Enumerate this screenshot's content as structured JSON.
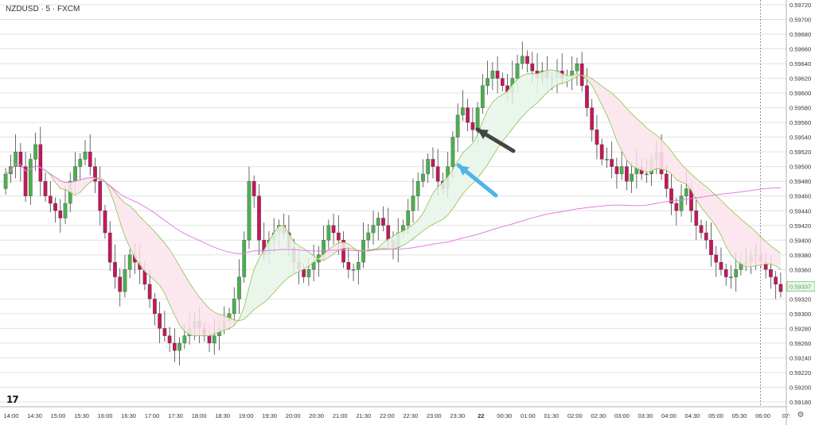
{
  "header": {
    "symbol_title": "NZDUSD · 5 · FXCM"
  },
  "branding": {
    "logo_text": "17"
  },
  "icons": {
    "settings": "settings-icon"
  },
  "colors": {
    "up": "#4caf50",
    "down": "#c2185b",
    "ribbon_up_fill": "#e8f5e9",
    "ribbon_down_fill": "#fce4ec",
    "ribbon_line": "#8bc34a",
    "ma_slow": "#e57ce8",
    "arrow_black": "#444444",
    "arrow_blue": "#4fb3e8",
    "grid": "#e0e0e0",
    "last_price_bg": "#e8f5e9"
  },
  "chart_data": {
    "type": "candlestick",
    "symbol": "NZDUSD",
    "timeframe": "5",
    "source": "FXCM",
    "ylim": [
      0.5918,
      0.5972
    ],
    "y_ticks": [
      "0.59720",
      "0.59700",
      "0.59680",
      "0.59660",
      "0.59640",
      "0.59620",
      "0.59600",
      "0.59580",
      "0.59560",
      "0.59540",
      "0.59520",
      "0.59500",
      "0.59480",
      "0.59460",
      "0.59440",
      "0.59420",
      "0.59400",
      "0.59380",
      "0.59360",
      "0.59337",
      "0.59320",
      "0.59300",
      "0.59280",
      "0.59260",
      "0.59240",
      "0.59220",
      "0.59200",
      "0.59180"
    ],
    "last_price": "0.59337",
    "x_ticks": [
      "14:00",
      "14:30",
      "15:00",
      "15:30",
      "16:00",
      "16:30",
      "17:00",
      "17:30",
      "18:00",
      "18:30",
      "19:00",
      "19:30",
      "20:00",
      "20:30",
      "21:00",
      "21:30",
      "22:00",
      "22:30",
      "23:00",
      "23:30",
      "22",
      "00:30",
      "01:00",
      "01:30",
      "02:00",
      "02:30",
      "03:00",
      "03:30",
      "04:00",
      "04:30",
      "05:00",
      "05:30",
      "06:00",
      "07:"
    ],
    "closes": [
      0.5949,
      0.595,
      0.5952,
      0.595,
      0.5946,
      0.5951,
      0.5953,
      0.5948,
      0.5946,
      0.5945,
      0.5944,
      0.5943,
      0.5945,
      0.5948,
      0.595,
      0.5951,
      0.5952,
      0.595,
      0.5948,
      0.5944,
      0.5941,
      0.5937,
      0.5935,
      0.5933,
      0.5936,
      0.5938,
      0.5937,
      0.5936,
      0.5934,
      0.5932,
      0.593,
      0.5928,
      0.5927,
      0.5926,
      0.5925,
      0.5926,
      0.5927,
      0.5928,
      0.5929,
      0.5928,
      0.5927,
      0.5926,
      0.5927,
      0.5928,
      0.5929,
      0.593,
      0.5932,
      0.5935,
      0.594,
      0.5948,
      0.5946,
      0.594,
      0.5938,
      0.594,
      0.5941,
      0.5942,
      0.5941,
      0.5939,
      0.5937,
      0.5936,
      0.5935,
      0.5936,
      0.5937,
      0.5938,
      0.594,
      0.5942,
      0.5941,
      0.594,
      0.5937,
      0.5936,
      0.5936,
      0.5937,
      0.594,
      0.5941,
      0.5942,
      0.5943,
      0.5942,
      0.594,
      0.5939,
      0.5941,
      0.5942,
      0.5944,
      0.5946,
      0.5948,
      0.5949,
      0.5951,
      0.595,
      0.5948,
      0.5947,
      0.595,
      0.5954,
      0.5957,
      0.5958,
      0.5956,
      0.5955,
      0.5958,
      0.5961,
      0.5962,
      0.5963,
      0.5962,
      0.5961,
      0.596,
      0.5962,
      0.5964,
      0.5965,
      0.5964,
      0.5963,
      0.5962,
      0.5963,
      0.5962,
      0.5962,
      0.5963,
      0.5962,
      0.5962,
      0.5963,
      0.5964,
      0.5961,
      0.5958,
      0.5955,
      0.5953,
      0.5951,
      0.5951,
      0.595,
      0.5949,
      0.595,
      0.5948,
      0.5949,
      0.595,
      0.5949,
      0.5949,
      0.5951,
      0.5952,
      0.5949,
      0.5947,
      0.5945,
      0.5944,
      0.5946,
      0.5947,
      0.5944,
      0.5942,
      0.5941,
      0.594,
      0.5938,
      0.5937,
      0.5936,
      0.5935,
      0.5935,
      0.5936,
      0.5937,
      0.5937,
      0.5938,
      0.5938,
      0.5937,
      0.5936,
      0.5935,
      0.5934,
      0.5933
    ]
  }
}
